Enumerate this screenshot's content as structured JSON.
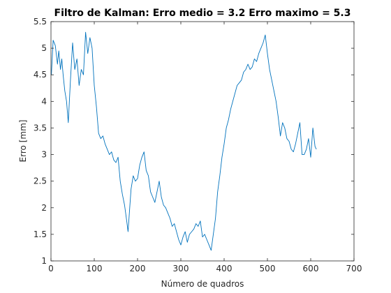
{
  "chart_data": {
    "type": "line",
    "title": "Filtro de Kalman: Erro medio = 3.2 Erro maximo = 5.3",
    "xlabel": "Número de quadros",
    "ylabel": "Erro [mm]",
    "xlim": [
      0,
      700
    ],
    "ylim": [
      1,
      5.5
    ],
    "xticks": [
      0,
      100,
      200,
      300,
      400,
      500,
      600,
      700
    ],
    "yticks": [
      1,
      1.5,
      2,
      2.5,
      3,
      3.5,
      4,
      4.5,
      5,
      5.5
    ],
    "xtick_labels": [
      "0",
      "100",
      "200",
      "300",
      "400",
      "500",
      "600",
      "700"
    ],
    "ytick_labels": [
      "1",
      "1.5",
      "2",
      "2.5",
      "3",
      "3.5",
      "4",
      "4.5",
      "5",
      "5.5"
    ],
    "grid": false,
    "line_color": "#0072BD",
    "series": [
      {
        "x": [
          1,
          5,
          10,
          15,
          18,
          22,
          25,
          28,
          32,
          36,
          40,
          45,
          50,
          55,
          60,
          65,
          70,
          75,
          80,
          85,
          90,
          95,
          100,
          105,
          110,
          115,
          120,
          125,
          130,
          135,
          140,
          145,
          150,
          155,
          160,
          165,
          170,
          175,
          178,
          182,
          185,
          190,
          195,
          200,
          205,
          210,
          215,
          220,
          225,
          230,
          235,
          240,
          245,
          250,
          255,
          260,
          265,
          270,
          275,
          280,
          285,
          290,
          295,
          300,
          305,
          310,
          315,
          320,
          325,
          330,
          335,
          340,
          345,
          350,
          355,
          360,
          365,
          370,
          375,
          380,
          385,
          390,
          395,
          400,
          405,
          410,
          415,
          420,
          425,
          430,
          435,
          440,
          445,
          450,
          455,
          460,
          465,
          470,
          475,
          480,
          485,
          490,
          495,
          500,
          505,
          510,
          515,
          520,
          525,
          530,
          535,
          540,
          545,
          550,
          555,
          560,
          565,
          570,
          575,
          580,
          585,
          590,
          595,
          600,
          605,
          610,
          613
        ],
        "y": [
          4.5,
          5.15,
          5.05,
          4.7,
          4.95,
          4.6,
          4.8,
          4.5,
          4.2,
          4.0,
          3.6,
          4.4,
          5.1,
          4.6,
          4.8,
          4.3,
          4.6,
          4.5,
          5.3,
          4.9,
          5.2,
          5.0,
          4.3,
          3.9,
          3.4,
          3.3,
          3.35,
          3.2,
          3.1,
          3.0,
          3.05,
          2.9,
          2.85,
          2.95,
          2.5,
          2.25,
          2.05,
          1.75,
          1.55,
          2.0,
          2.35,
          2.6,
          2.5,
          2.55,
          2.8,
          2.95,
          3.05,
          2.7,
          2.6,
          2.3,
          2.2,
          2.1,
          2.3,
          2.5,
          2.2,
          2.05,
          2.0,
          1.9,
          1.8,
          1.65,
          1.7,
          1.55,
          1.4,
          1.3,
          1.45,
          1.55,
          1.35,
          1.5,
          1.55,
          1.6,
          1.7,
          1.65,
          1.75,
          1.45,
          1.5,
          1.4,
          1.3,
          1.2,
          1.5,
          1.8,
          2.3,
          2.6,
          2.95,
          3.2,
          3.5,
          3.65,
          3.85,
          4.0,
          4.15,
          4.3,
          4.35,
          4.4,
          4.55,
          4.6,
          4.7,
          4.6,
          4.65,
          4.8,
          4.75,
          4.9,
          5.0,
          5.1,
          5.25,
          4.9,
          4.6,
          4.4,
          4.2,
          4.0,
          3.7,
          3.35,
          3.6,
          3.5,
          3.3,
          3.25,
          3.1,
          3.05,
          3.2,
          3.4,
          3.6,
          3.0,
          3.0,
          3.1,
          3.3,
          2.95,
          3.5,
          3.15,
          3.1
        ]
      }
    ]
  }
}
